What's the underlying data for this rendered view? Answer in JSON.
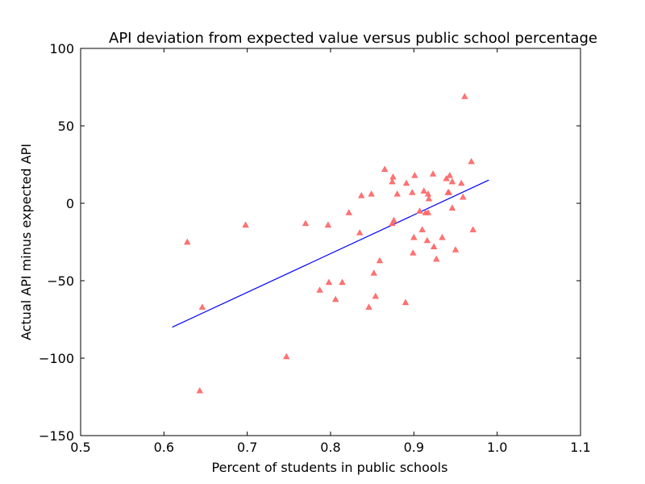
{
  "chart_data": {
    "type": "scatter",
    "title": "API deviation from expected value versus public school percentage",
    "xlabel": "Percent of students in public schools",
    "ylabel": "Actual API minus expected API",
    "xlim": [
      0.5,
      1.1
    ],
    "ylim": [
      -150,
      100
    ],
    "xticks": [
      {
        "value": 0.5,
        "label": "0.5"
      },
      {
        "value": 0.6,
        "label": "0.6"
      },
      {
        "value": 0.7,
        "label": "0.7"
      },
      {
        "value": 0.8,
        "label": "0.8"
      },
      {
        "value": 0.9,
        "label": "0.9"
      },
      {
        "value": 1.0,
        "label": "1.0"
      },
      {
        "value": 1.1,
        "label": "1.1"
      }
    ],
    "yticks": [
      {
        "value": 100,
        "label": "100"
      },
      {
        "value": 50,
        "label": "50"
      },
      {
        "value": 0,
        "label": "0"
      },
      {
        "value": -50,
        "label": "−50"
      },
      {
        "value": -100,
        "label": "−100"
      },
      {
        "value": -150,
        "label": "−150"
      }
    ],
    "grid": false,
    "marker_color": "#ff6666",
    "line_color": "#0000ff",
    "points": [
      [
        0.628,
        -25
      ],
      [
        0.643,
        -121
      ],
      [
        0.646,
        -67
      ],
      [
        0.698,
        -14
      ],
      [
        0.747,
        -99
      ],
      [
        0.77,
        -13
      ],
      [
        0.787,
        -56
      ],
      [
        0.797,
        -14
      ],
      [
        0.798,
        -51
      ],
      [
        0.806,
        -62
      ],
      [
        0.814,
        -51
      ],
      [
        0.822,
        -6
      ],
      [
        0.835,
        -19
      ],
      [
        0.837,
        5
      ],
      [
        0.846,
        -67
      ],
      [
        0.849,
        6
      ],
      [
        0.852,
        -45
      ],
      [
        0.854,
        -60
      ],
      [
        0.859,
        -37
      ],
      [
        0.865,
        22
      ],
      [
        0.874,
        -13
      ],
      [
        0.874,
        14
      ],
      [
        0.875,
        17
      ],
      [
        0.876,
        -11
      ],
      [
        0.88,
        6
      ],
      [
        0.89,
        -64
      ],
      [
        0.891,
        13
      ],
      [
        0.898,
        7
      ],
      [
        0.899,
        -32
      ],
      [
        0.9,
        -22
      ],
      [
        0.901,
        18
      ],
      [
        0.907,
        -5
      ],
      [
        0.91,
        -17
      ],
      [
        0.912,
        8
      ],
      [
        0.914,
        -6
      ],
      [
        0.916,
        -24
      ],
      [
        0.917,
        -6
      ],
      [
        0.917,
        6
      ],
      [
        0.918,
        3
      ],
      [
        0.923,
        19
      ],
      [
        0.924,
        -28
      ],
      [
        0.927,
        -36
      ],
      [
        0.934,
        -22
      ],
      [
        0.939,
        16
      ],
      [
        0.941,
        7
      ],
      [
        0.942,
        7
      ],
      [
        0.943,
        18
      ],
      [
        0.946,
        -3
      ],
      [
        0.946,
        14
      ],
      [
        0.95,
        -30
      ],
      [
        0.957,
        13
      ],
      [
        0.959,
        4
      ],
      [
        0.961,
        69
      ],
      [
        0.969,
        27
      ],
      [
        0.971,
        -17
      ]
    ],
    "fit_line": [
      [
        0.61,
        -80
      ],
      [
        0.99,
        15
      ]
    ]
  }
}
